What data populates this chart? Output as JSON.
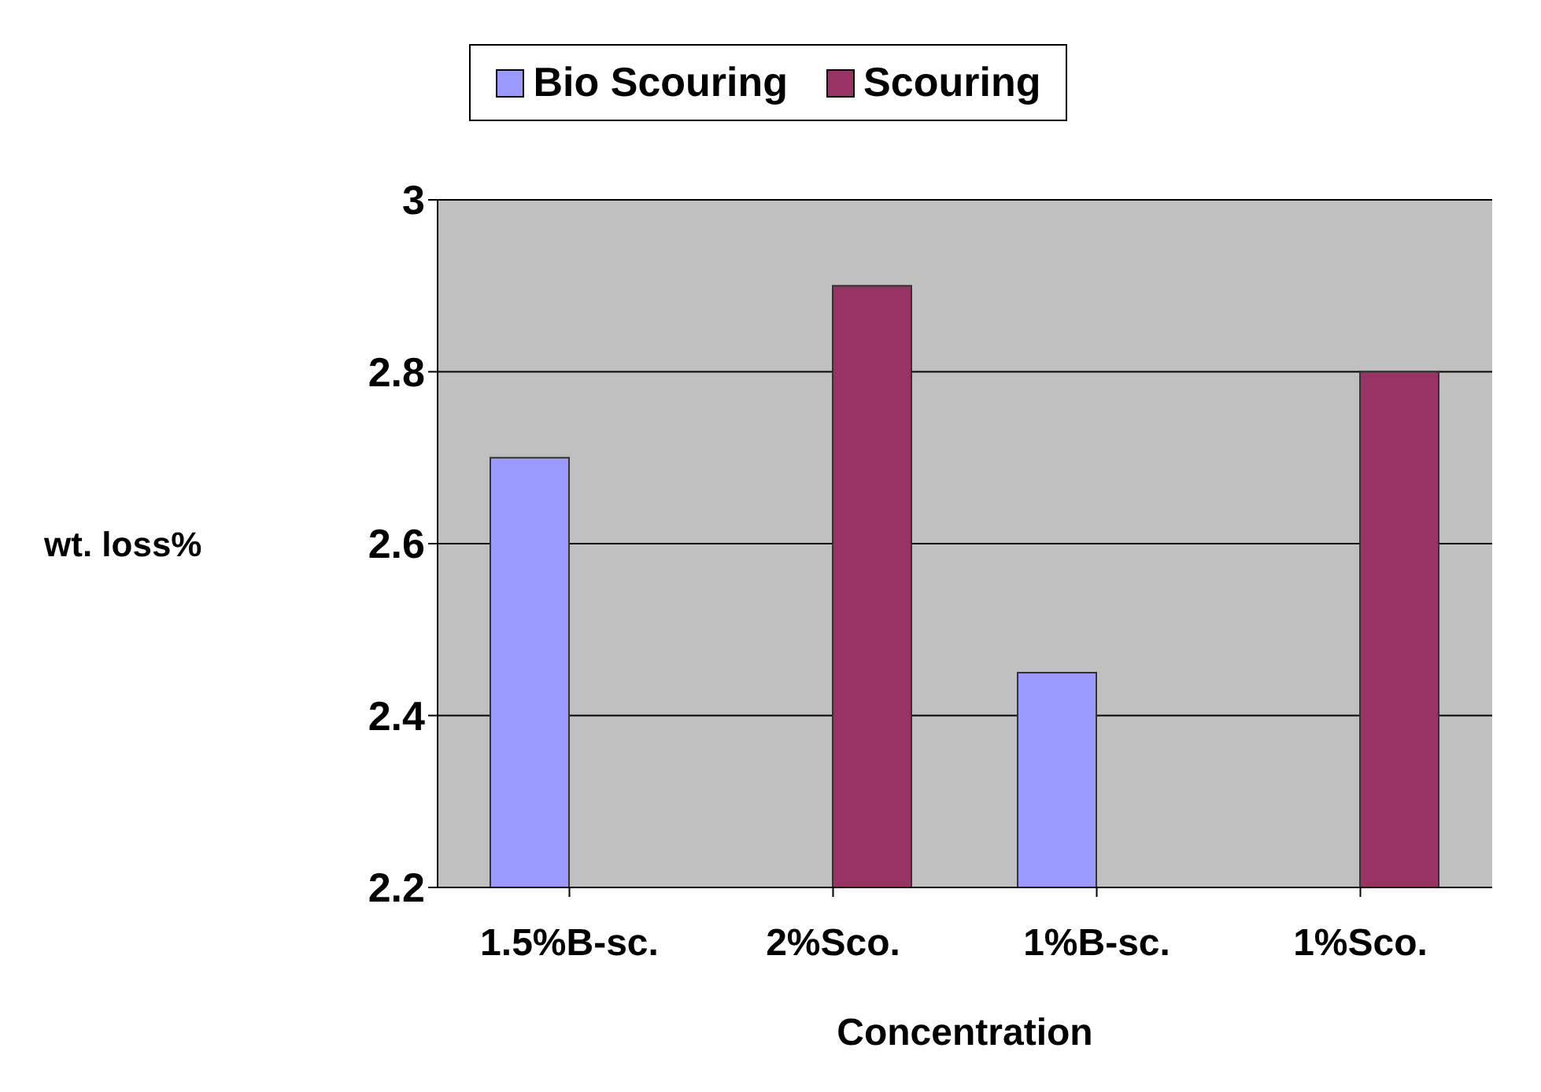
{
  "chart_data": {
    "type": "bar",
    "xlabel": "Concentration",
    "ylabel": "wt. loss%",
    "categories": [
      "1.5%B-sc.",
      "2%Sco.",
      "1%B-sc.",
      "1%Sco."
    ],
    "series": [
      {
        "name": "Bio Scouring",
        "color": "#9999ff",
        "values": [
          2.7,
          null,
          2.45,
          null
        ]
      },
      {
        "name": "Scouring",
        "color": "#993366",
        "values": [
          null,
          2.9,
          null,
          2.8
        ]
      }
    ],
    "ylim": [
      2.2,
      3
    ],
    "yticks": [
      2.2,
      2.4,
      2.6,
      2.8,
      3
    ],
    "grid": "y",
    "legend": "top"
  }
}
